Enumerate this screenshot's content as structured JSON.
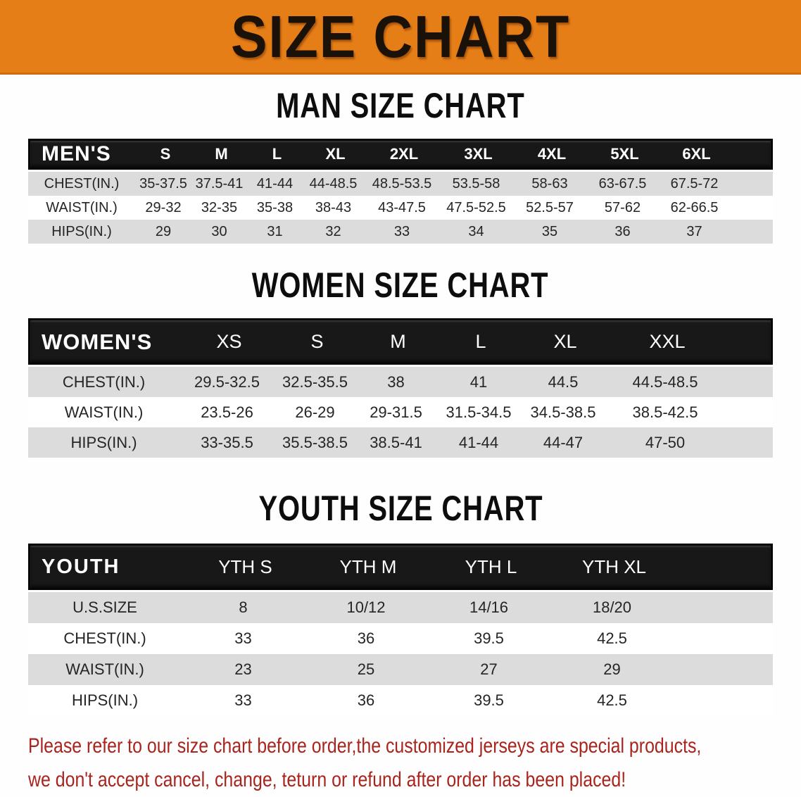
{
  "banner": {
    "title": "SIZE CHART",
    "bg_color": "#e67e17",
    "text_color": "#1a1208"
  },
  "men": {
    "heading": "MAN SIZE CHART",
    "table": {
      "corner": "MEN'S",
      "sizes": [
        "S",
        "M",
        "L",
        "XL",
        "2XL",
        "3XL",
        "4XL",
        "5XL",
        "6XL"
      ],
      "rows": [
        {
          "label": "CHEST(IN.)",
          "values": [
            "35-37.5",
            "37.5-41",
            "41-44",
            "44-48.5",
            "48.5-53.5",
            "53.5-58",
            "58-63",
            "63-67.5",
            "67.5-72"
          ]
        },
        {
          "label": "WAIST(IN.)",
          "values": [
            "29-32",
            "32-35",
            "35-38",
            "38-43",
            "43-47.5",
            "47.5-52.5",
            "52.5-57",
            "57-62",
            "62-66.5"
          ]
        },
        {
          "label": "HIPS(IN.)",
          "values": [
            "29",
            "30",
            "31",
            "32",
            "33",
            "34",
            "35",
            "36",
            "37"
          ]
        }
      ]
    }
  },
  "women": {
    "heading": "WOMEN SIZE CHART",
    "table": {
      "corner": "WOMEN'S",
      "sizes": [
        "XS",
        "S",
        "M",
        "L",
        "XL",
        "XXL"
      ],
      "rows": [
        {
          "label": "CHEST(IN.)",
          "values": [
            "29.5-32.5",
            "32.5-35.5",
            "38",
            "41",
            "44.5",
            "44.5-48.5"
          ]
        },
        {
          "label": "WAIST(IN.)",
          "values": [
            "23.5-26",
            "26-29",
            "29-31.5",
            "31.5-34.5",
            "34.5-38.5",
            "38.5-42.5"
          ]
        },
        {
          "label": "HIPS(IN.)",
          "values": [
            "33-35.5",
            "35.5-38.5",
            "38.5-41",
            "41-44",
            "44-47",
            "47-50"
          ]
        }
      ]
    }
  },
  "youth": {
    "heading": "YOUTH SIZE CHART",
    "table": {
      "corner": "YOUTH",
      "sizes": [
        "YTH S",
        "YTH M",
        "YTH L",
        "YTH XL"
      ],
      "rows": [
        {
          "label": "U.S.SIZE",
          "values": [
            "8",
            "10/12",
            "14/16",
            "18/20"
          ]
        },
        {
          "label": "CHEST(IN.)",
          "values": [
            "33",
            "36",
            "39.5",
            "42.5"
          ]
        },
        {
          "label": "WAIST(IN.)",
          "values": [
            "23",
            "25",
            "27",
            "29"
          ]
        },
        {
          "label": "HIPS(IN.)",
          "values": [
            "33",
            "36",
            "39.5",
            "42.5"
          ]
        }
      ]
    }
  },
  "footer": {
    "line1": "Please refer to our size chart before order,the customized jerseys are special products,",
    "line2": "we don't accept cancel, change, teturn or refund after order has been placed!",
    "text_color": "#a8241d",
    "stripe_color": "#dcdcdc",
    "header_bar_color": "#181818"
  }
}
